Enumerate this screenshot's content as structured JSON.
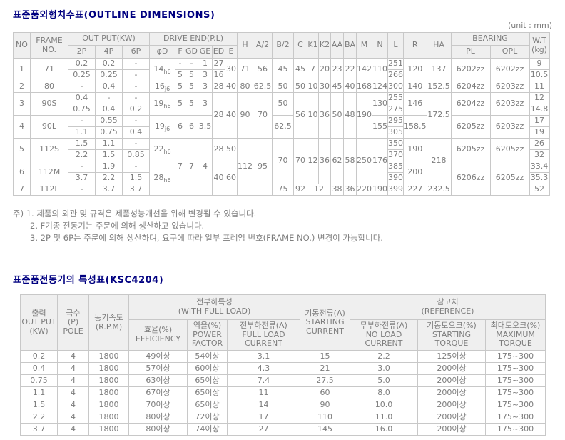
{
  "page": {
    "title1": "표준품외형치수표(OUTLINE DIMENSIONS)",
    "title2": "표준품전동기의 특성표(KSC4204)",
    "unit_label": "(unit : mm)",
    "notes": [
      "주) 1. 제품의 외관 및 규격은 제품성능개선을 위해 변경될 수 있습니다.",
      "2. F기종 전동기는 주문에 의해 생산하고 있습니다.",
      "3. 2P 및 6P는 주문에 의해 생산하며, 요구에 따라 일부 프레임 번호(FRAME NO.) 변경이 가능합니다."
    ]
  },
  "dim_table": {
    "header_rows": [
      [
        {
          "t": "NO",
          "rs": 2
        },
        {
          "t": "FRAME\nNO.",
          "rs": 2
        },
        {
          "t": "OUT PUT(KW)",
          "cs": 3
        },
        {
          "t": "DRIVE END(P.L)",
          "cs": 6
        },
        {
          "t": "H",
          "rs": 2
        },
        {
          "t": "A/2",
          "rs": 2
        },
        {
          "t": "B/2",
          "rs": 2
        },
        {
          "t": "C",
          "rs": 2
        },
        {
          "t": "K1",
          "rs": 2
        },
        {
          "t": "K2",
          "rs": 2
        },
        {
          "t": "AA",
          "rs": 2
        },
        {
          "t": "BA",
          "rs": 2
        },
        {
          "t": "M",
          "rs": 2
        },
        {
          "t": "N",
          "rs": 2
        },
        {
          "t": "L",
          "rs": 2
        },
        {
          "t": "R",
          "rs": 2
        },
        {
          "t": "HA",
          "rs": 2
        },
        {
          "t": "BEARING",
          "cs": 2
        },
        {
          "t": "W.T\n(kg)",
          "rs": 2
        }
      ],
      [
        "2P",
        "4P",
        "6P",
        "φD",
        "F",
        "GD",
        "GE",
        "ED",
        "E",
        "PL",
        "OPL"
      ]
    ],
    "body_rows": [
      [
        {
          "t": "1",
          "rs": 2
        },
        {
          "t": "71",
          "rs": 2
        },
        "0.2",
        "0.2",
        "-",
        {
          "t": "14",
          "sub": "h6",
          "rs": 2
        },
        "-",
        "-",
        "1",
        "27",
        {
          "t": "30",
          "rs": 2
        },
        {
          "t": "71",
          "rs": 2
        },
        {
          "t": "56",
          "rs": 2
        },
        {
          "t": "45",
          "rs": 2
        },
        {
          "t": "45",
          "rs": 2
        },
        {
          "t": "7",
          "rs": 2
        },
        {
          "t": "20",
          "rs": 2
        },
        {
          "t": "23",
          "rs": 2
        },
        {
          "t": "22",
          "rs": 2
        },
        {
          "t": "142",
          "rs": 2
        },
        {
          "t": "110",
          "rs": 2
        },
        "251",
        {
          "t": "120",
          "rs": 2
        },
        {
          "t": "137",
          "rs": 2
        },
        {
          "t": "6202zz",
          "rs": 2
        },
        {
          "t": "6202zz",
          "rs": 2
        },
        "9"
      ],
      [
        "0.25",
        "0.25",
        "-",
        "5",
        "5",
        "3",
        "16",
        "266",
        "10.5"
      ],
      [
        "2",
        "80",
        "-",
        "0.4",
        "-",
        {
          "t": "16",
          "sub": "j6"
        },
        "5",
        "5",
        "3",
        "28",
        "40",
        "80",
        "62.5",
        "50",
        "50",
        "10",
        "30",
        "45",
        "40",
        "168",
        "124",
        "300",
        "140",
        "152.5",
        "6204zz",
        "6203zz",
        "11"
      ],
      [
        {
          "t": "3",
          "rs": 2
        },
        {
          "t": "90S",
          "rs": 2
        },
        "0.4",
        "-",
        "-",
        {
          "t": "19",
          "sub": "h6",
          "rs": 2
        },
        {
          "t": "5",
          "rs": 2
        },
        {
          "t": "5",
          "rs": 2
        },
        {
          "t": "3",
          "rs": 2
        },
        {
          "t": "28",
          "rs": 4
        },
        {
          "t": "40",
          "rs": 4
        },
        {
          "t": "90",
          "rs": 4
        },
        {
          "t": "70",
          "rs": 4
        },
        {
          "t": "50",
          "rs": 2
        },
        {
          "t": "56",
          "rs": 4
        },
        {
          "t": "10",
          "rs": 4
        },
        {
          "t": "36",
          "rs": 4
        },
        {
          "t": "50",
          "rs": 4
        },
        {
          "t": "48",
          "rs": 4
        },
        {
          "t": "190",
          "rs": 4
        },
        {
          "t": "130",
          "rs": 2
        },
        "255",
        {
          "t": "146",
          "rs": 2
        },
        {
          "t": "172.5",
          "rs": 4
        },
        {
          "t": "6204zz",
          "rs": 2
        },
        {
          "t": "6203zz",
          "rs": 2
        },
        "12"
      ],
      [
        "0.75",
        "0.4",
        "0.2",
        "275",
        "14.8"
      ],
      [
        {
          "t": "4",
          "rs": 2
        },
        {
          "t": "90L",
          "rs": 2
        },
        "-",
        "0.55",
        "-",
        {
          "t": "19",
          "sub": "j6",
          "rs": 2
        },
        {
          "t": "6",
          "rs": 2
        },
        {
          "t": "6",
          "rs": 2
        },
        {
          "t": "3.5",
          "rs": 2
        },
        {
          "t": "62.5",
          "rs": 2
        },
        {
          "t": "155",
          "rs": 2
        },
        "295",
        {
          "t": "158.5",
          "rs": 2
        },
        {
          "t": "6205zz",
          "rs": 2
        },
        {
          "t": "6203zz",
          "rs": 2
        },
        "17"
      ],
      [
        "1.1",
        "0.75",
        "0.4",
        "305",
        "19"
      ],
      [
        {
          "t": "5",
          "rs": 2
        },
        {
          "t": "112S",
          "rs": 2
        },
        "1.5",
        "1.1",
        "-",
        {
          "t": "22",
          "sub": "h6",
          "rs": 2
        },
        {
          "t": "7",
          "rs": 5
        },
        {
          "t": "7",
          "rs": 5
        },
        {
          "t": "4",
          "rs": 5
        },
        {
          "t": "28",
          "rs": 2
        },
        {
          "t": "50",
          "rs": 2
        },
        {
          "t": "112",
          "rs": 5
        },
        {
          "t": "95",
          "rs": 5
        },
        {
          "t": "70",
          "rs": 4
        },
        {
          "t": "70",
          "rs": 4
        },
        {
          "t": "12",
          "rs": 4
        },
        {
          "t": "36",
          "rs": 4
        },
        {
          "t": "62",
          "rs": 4
        },
        {
          "t": "58",
          "rs": 4
        },
        {
          "t": "250",
          "rs": 4
        },
        {
          "t": "176",
          "rs": 4
        },
        "350",
        {
          "t": "190",
          "rs": 2
        },
        {
          "t": "218",
          "rs": 4
        },
        {
          "t": "6205zz",
          "rs": 2
        },
        {
          "t": "6205zz",
          "rs": 2
        },
        "26"
      ],
      [
        "2.2",
        "1.5",
        "0.85",
        "370",
        "32"
      ],
      [
        {
          "t": "6",
          "rs": 2
        },
        {
          "t": "112M",
          "rs": 2
        },
        "-",
        "1.9",
        "-",
        {
          "t": "28",
          "sub": "h6",
          "rs": 3
        },
        {
          "t": "40",
          "rs": 3
        },
        {
          "t": "60",
          "rs": 3
        },
        "385",
        {
          "t": "200",
          "rs": 2
        },
        {
          "t": "6206zz",
          "rs": 3
        },
        {
          "t": "6205zz",
          "rs": 3
        },
        "33.4"
      ],
      [
        "3.7",
        "2.2",
        "1.5",
        "390",
        "35.3"
      ],
      [
        "7",
        "112L",
        "-",
        "3.7",
        "3.7",
        "75",
        "92",
        {
          "t": "12",
          "cs": 2
        },
        "38",
        "36",
        "220",
        "190",
        "399",
        "227",
        "232.5",
        "52"
      ]
    ]
  },
  "spec_table": {
    "header_rows": [
      [
        {
          "t": "출력\nOUT PUT\n(KW)",
          "rs": 2
        },
        {
          "t": "극수\n(P)\nPOLE",
          "rs": 2
        },
        {
          "t": "동기속도\n(R.P.M)",
          "rs": 2
        },
        {
          "t": "전부하특성\n(WITH FULL LOAD)",
          "cs": 3
        },
        {
          "t": "기동전류(A)\nSTARTING\nCURRENT",
          "rs": 2
        },
        {
          "t": "참고치\n(REFERENCE)",
          "cs": 3
        }
      ],
      [
        "효율(%)\nEFFICIENCY",
        "역율(%)\nPOWER\nFACTOR",
        "전부하전류(A)\nFULL LOAD\nCURRENT",
        "무부하전류(A)\nNO LOAD\nCURRENT",
        "기동토오크(%)\nSTARTING\nTORQUE",
        "최대토오크(%)\nMAXIMUM\nTORQUE"
      ]
    ],
    "body_rows": [
      [
        "0.2",
        "4",
        "1800",
        "49이상",
        "54이상",
        "3.1",
        "15",
        "2.2",
        "125이상",
        "175~300"
      ],
      [
        "0.4",
        "4",
        "1800",
        "57이상",
        "60이상",
        "4.3",
        "21",
        "3.0",
        "200이상",
        "175~300"
      ],
      [
        "0.75",
        "4",
        "1800",
        "63이상",
        "65이상",
        "7.4",
        "27.5",
        "5.0",
        "200이상",
        "175~300"
      ],
      [
        "1.1",
        "4",
        "1800",
        "67이상",
        "65이상",
        "11",
        "60",
        "8.0",
        "200이상",
        "175~300"
      ],
      [
        "1.5",
        "4",
        "1800",
        "70이상",
        "65이상",
        "14",
        "90",
        "10.0",
        "200이상",
        "175~300"
      ],
      [
        "2.2",
        "4",
        "1800",
        "80이상",
        "72이상",
        "17",
        "110",
        "11.0",
        "200이상",
        "175~300"
      ],
      [
        "3.7",
        "4",
        "1800",
        "80이상",
        "74이상",
        "27",
        "145",
        "16.0",
        "200이상",
        "175~300"
      ]
    ]
  }
}
